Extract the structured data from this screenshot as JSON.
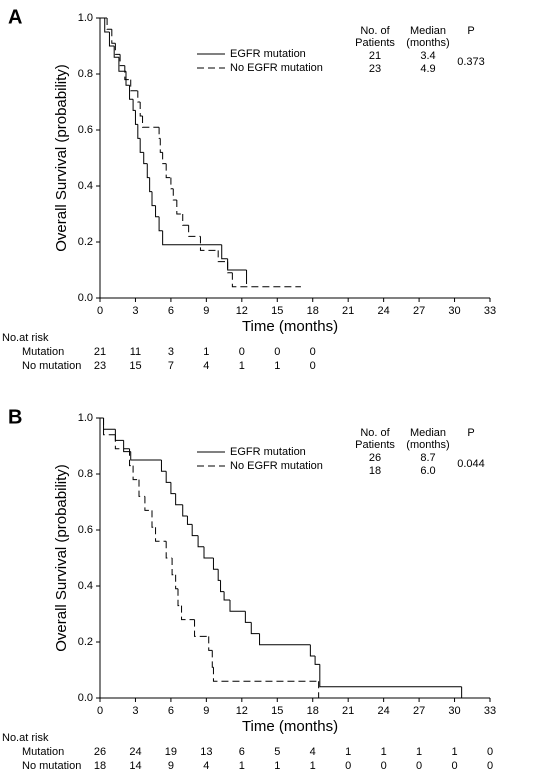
{
  "chart_data": [
    {
      "type": "step",
      "panel": "A",
      "ylabel": "Overall Survival (probability)",
      "xlabel": "Time (months)",
      "xlim": [
        0,
        33
      ],
      "ylim": [
        0,
        1
      ],
      "xticks": [
        0,
        3,
        6,
        9,
        12,
        15,
        18,
        21,
        24,
        27,
        30,
        33
      ],
      "yticks": [
        {
          "value": 0,
          "label": "0.0"
        },
        0.2,
        0.4,
        0.6,
        0.8,
        {
          "value": 1,
          "label": "1.0"
        }
      ],
      "series": [
        {
          "name": "EGFR mutation",
          "color": "#000000",
          "dash": false,
          "x": [
            0,
            0.4,
            0.8,
            1.2,
            1.6,
            2.2,
            2.5,
            2.8,
            3.0,
            3.2,
            3.4,
            3.7,
            4.0,
            4.2,
            4.4,
            4.7,
            5.0,
            5.3,
            10.3,
            10.8,
            12.4
          ],
          "values": [
            1,
            0.95,
            0.9,
            0.86,
            0.81,
            0.76,
            0.71,
            0.67,
            0.62,
            0.57,
            0.52,
            0.48,
            0.43,
            0.38,
            0.33,
            0.29,
            0.24,
            0.19,
            0.14,
            0.1,
            0.05
          ]
        },
        {
          "name": "No EGFR mutation",
          "color": "#000000",
          "dash": true,
          "x": [
            0,
            0.6,
            1.0,
            1.3,
            1.7,
            2.1,
            2.6,
            3.2,
            3.4,
            3.6,
            5.0,
            5.1,
            5.3,
            5.6,
            6.0,
            6.2,
            6.5,
            7.0,
            7.5,
            8.5,
            10.0,
            10.8,
            11.2,
            17.0
          ],
          "values": [
            1,
            0.96,
            0.91,
            0.87,
            0.83,
            0.78,
            0.74,
            0.7,
            0.65,
            0.61,
            0.57,
            0.52,
            0.48,
            0.43,
            0.39,
            0.35,
            0.3,
            0.26,
            0.22,
            0.17,
            0.13,
            0.09,
            0.04,
            0.04
          ]
        }
      ],
      "table": {
        "headers": [
          [
            "No. of",
            "Patients"
          ],
          [
            "Median",
            "(months)"
          ],
          [
            "P"
          ]
        ],
        "rows": [
          [
            "21",
            "3.4"
          ],
          [
            "23",
            "4.9"
          ]
        ],
        "p": "0.373"
      },
      "risk": {
        "title": "No.at risk",
        "rows": [
          {
            "name": "Mutation",
            "counts": [
              21,
              11,
              3,
              1,
              0,
              0,
              0
            ]
          },
          {
            "name": "No mutation",
            "counts": [
              23,
              15,
              7,
              4,
              1,
              1,
              0
            ]
          }
        ]
      }
    },
    {
      "type": "step",
      "panel": "B",
      "ylabel": "Overall Survival (probability)",
      "xlabel": "Time (months)",
      "xlim": [
        0,
        33
      ],
      "ylim": [
        0,
        1
      ],
      "xticks": [
        0,
        3,
        6,
        9,
        12,
        15,
        18,
        21,
        24,
        27,
        30,
        33
      ],
      "yticks": [
        {
          "value": 0,
          "label": "0.0"
        },
        0.2,
        0.4,
        0.6,
        0.8,
        {
          "value": 1,
          "label": "1.0"
        }
      ],
      "series": [
        {
          "name": "EGFR mutation",
          "color": "#000000",
          "dash": false,
          "x": [
            0,
            0.3,
            1.3,
            2.0,
            2.6,
            5.2,
            5.6,
            6.0,
            6.4,
            7.0,
            7.4,
            7.8,
            8.3,
            8.8,
            9.6,
            10.0,
            10.2,
            10.5,
            11.0,
            12.3,
            12.8,
            13.5,
            17.8,
            18.2,
            18.6,
            30.6
          ],
          "values": [
            1,
            0.96,
            0.92,
            0.88,
            0.85,
            0.81,
            0.77,
            0.73,
            0.69,
            0.65,
            0.62,
            0.58,
            0.54,
            0.5,
            0.46,
            0.42,
            0.38,
            0.35,
            0.31,
            0.27,
            0.23,
            0.19,
            0.15,
            0.12,
            0.04,
            0
          ]
        },
        {
          "name": "No EGFR mutation",
          "color": "#000000",
          "dash": true,
          "x": [
            0,
            0.3,
            1.3,
            2.5,
            2.8,
            3.3,
            3.8,
            4.4,
            4.7,
            5.6,
            6.1,
            6.4,
            6.6,
            6.9,
            8.0,
            9.2,
            9.5,
            9.6,
            18.5
          ],
          "values": [
            1,
            0.94,
            0.89,
            0.83,
            0.78,
            0.72,
            0.67,
            0.61,
            0.56,
            0.5,
            0.44,
            0.39,
            0.33,
            0.28,
            0.22,
            0.17,
            0.11,
            0.06,
            0
          ]
        }
      ],
      "table": {
        "headers": [
          [
            "No. of",
            "Patients"
          ],
          [
            "Median",
            "(months)"
          ],
          [
            "P"
          ]
        ],
        "rows": [
          [
            "26",
            "8.7"
          ],
          [
            "18",
            "6.0"
          ]
        ],
        "p": "0.044"
      },
      "risk": {
        "title": "No.at risk",
        "rows": [
          {
            "name": "Mutation",
            "counts": [
              26,
              24,
              19,
              13,
              6,
              5,
              4,
              1,
              1,
              1,
              1,
              0
            ]
          },
          {
            "name": "No mutation",
            "counts": [
              18,
              14,
              9,
              4,
              1,
              1,
              1,
              0,
              0,
              0,
              0,
              0
            ]
          }
        ]
      }
    }
  ]
}
